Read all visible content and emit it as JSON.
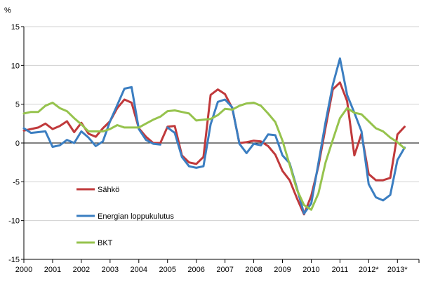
{
  "chart_data": {
    "type": "line",
    "ylabel": "%",
    "ylim": [
      -15,
      15
    ],
    "yticks": [
      -15,
      -10,
      -5,
      0,
      5,
      10,
      15
    ],
    "xlim": [
      2000,
      2013.75
    ],
    "xticks": [
      {
        "x": 2000,
        "label": "2000"
      },
      {
        "x": 2001,
        "label": "2001"
      },
      {
        "x": 2002,
        "label": "2002"
      },
      {
        "x": 2003,
        "label": "2003"
      },
      {
        "x": 2004,
        "label": "2004"
      },
      {
        "x": 2005,
        "label": "2005"
      },
      {
        "x": 2006,
        "label": "2006"
      },
      {
        "x": 2007,
        "label": "2007"
      },
      {
        "x": 2008,
        "label": "2008"
      },
      {
        "x": 2009,
        "label": "2009"
      },
      {
        "x": 2010,
        "label": "2010"
      },
      {
        "x": 2011,
        "label": "2011"
      },
      {
        "x": 2012,
        "label": "2012*"
      },
      {
        "x": 2013,
        "label": "2013*"
      }
    ],
    "grid": "horizontal",
    "legend_position": "inside-bottom-left",
    "series": [
      {
        "name": "Sähkö",
        "color": "#c0393b",
        "values": [
          [
            2000.0,
            1.6
          ],
          [
            2000.25,
            1.8
          ],
          [
            2000.5,
            2.0
          ],
          [
            2000.75,
            2.5
          ],
          [
            2001.0,
            1.8
          ],
          [
            2001.25,
            2.2
          ],
          [
            2001.5,
            2.8
          ],
          [
            2001.75,
            1.4
          ],
          [
            2002.0,
            2.6
          ],
          [
            2002.25,
            1.2
          ],
          [
            2002.5,
            0.8
          ],
          [
            2002.75,
            1.9
          ],
          [
            2003.0,
            2.8
          ],
          [
            2003.25,
            4.5
          ],
          [
            2003.5,
            5.6
          ],
          [
            2003.75,
            5.2
          ],
          [
            2004.0,
            1.9
          ],
          [
            2004.25,
            0.8
          ],
          [
            2004.5,
            0.0
          ],
          [
            2004.75,
            0.0
          ],
          [
            2005.0,
            2.1
          ],
          [
            2005.25,
            2.2
          ],
          [
            2005.5,
            -1.6
          ],
          [
            2005.75,
            -2.5
          ],
          [
            2006.0,
            -2.7
          ],
          [
            2006.25,
            -1.8
          ],
          [
            2006.5,
            6.2
          ],
          [
            2006.75,
            6.9
          ],
          [
            2007.0,
            6.3
          ],
          [
            2007.25,
            4.5
          ],
          [
            2007.5,
            0.0
          ],
          [
            2007.75,
            0.1
          ],
          [
            2008.0,
            0.3
          ],
          [
            2008.25,
            0.2
          ],
          [
            2008.5,
            -0.4
          ],
          [
            2008.75,
            -1.5
          ],
          [
            2009.0,
            -3.6
          ],
          [
            2009.25,
            -4.8
          ],
          [
            2009.5,
            -7.1
          ],
          [
            2009.75,
            -9.2
          ],
          [
            2010.0,
            -6.8
          ],
          [
            2010.25,
            -3.0
          ],
          [
            2010.5,
            2.0
          ],
          [
            2010.75,
            6.9
          ],
          [
            2011.0,
            7.8
          ],
          [
            2011.25,
            5.4
          ],
          [
            2011.5,
            -1.6
          ],
          [
            2011.75,
            1.2
          ],
          [
            2012.0,
            -4.0
          ],
          [
            2012.25,
            -4.8
          ],
          [
            2012.5,
            -4.8
          ],
          [
            2012.75,
            -4.5
          ],
          [
            2013.0,
            1.1
          ],
          [
            2013.25,
            2.1
          ]
        ]
      },
      {
        "name": "Energian loppukulutus",
        "color": "#3b7ec1",
        "values": [
          [
            2000.0,
            1.9
          ],
          [
            2000.25,
            1.3
          ],
          [
            2000.5,
            1.4
          ],
          [
            2000.75,
            1.5
          ],
          [
            2001.0,
            -0.5
          ],
          [
            2001.25,
            -0.3
          ],
          [
            2001.5,
            0.4
          ],
          [
            2001.75,
            0.0
          ],
          [
            2002.0,
            1.5
          ],
          [
            2002.25,
            0.7
          ],
          [
            2002.5,
            -0.4
          ],
          [
            2002.75,
            0.2
          ],
          [
            2003.0,
            2.8
          ],
          [
            2003.25,
            4.9
          ],
          [
            2003.5,
            7.0
          ],
          [
            2003.75,
            7.2
          ],
          [
            2004.0,
            1.8
          ],
          [
            2004.25,
            0.4
          ],
          [
            2004.5,
            -0.1
          ],
          [
            2004.75,
            -0.2
          ],
          [
            null,
            null
          ],
          [
            2005.0,
            2.0
          ],
          [
            2005.25,
            1.3
          ],
          [
            2005.5,
            -1.8
          ],
          [
            2005.75,
            -3.0
          ],
          [
            2006.0,
            -3.2
          ],
          [
            2006.25,
            -3.0
          ],
          [
            2006.5,
            2.4
          ],
          [
            2006.75,
            5.3
          ],
          [
            2007.0,
            5.6
          ],
          [
            2007.25,
            4.6
          ],
          [
            2007.5,
            -0.1
          ],
          [
            2007.75,
            -1.3
          ],
          [
            2008.0,
            -0.1
          ],
          [
            2008.25,
            -0.3
          ],
          [
            2008.5,
            1.1
          ],
          [
            2008.75,
            1.0
          ],
          [
            2009.0,
            -1.6
          ],
          [
            2009.25,
            -2.6
          ],
          [
            2009.5,
            -5.8
          ],
          [
            2009.75,
            -9.1
          ],
          [
            2010.0,
            -7.8
          ],
          [
            2010.25,
            -2.6
          ],
          [
            2010.5,
            2.7
          ],
          [
            2010.75,
            7.5
          ],
          [
            2011.0,
            10.9
          ],
          [
            2011.25,
            6.2
          ],
          [
            2011.5,
            3.9
          ],
          [
            2011.75,
            1.5
          ],
          [
            2012.0,
            -5.3
          ],
          [
            2012.25,
            -7.0
          ],
          [
            2012.5,
            -7.4
          ],
          [
            2012.75,
            -6.7
          ],
          [
            2013.0,
            -2.2
          ],
          [
            2013.25,
            -0.6
          ]
        ]
      },
      {
        "name": "BKT",
        "color": "#96c34d",
        "values": [
          [
            2000.0,
            3.8
          ],
          [
            2000.25,
            4.0
          ],
          [
            2000.5,
            4.0
          ],
          [
            2000.75,
            4.8
          ],
          [
            2001.0,
            5.2
          ],
          [
            2001.25,
            4.5
          ],
          [
            2001.5,
            4.1
          ],
          [
            2001.75,
            3.2
          ],
          [
            2002.0,
            2.4
          ],
          [
            2002.25,
            1.5
          ],
          [
            2002.5,
            1.5
          ],
          [
            2002.75,
            1.5
          ],
          [
            2003.0,
            1.8
          ],
          [
            2003.25,
            2.3
          ],
          [
            2003.5,
            2.0
          ],
          [
            2003.75,
            2.0
          ],
          [
            2004.0,
            2.0
          ],
          [
            2004.25,
            2.5
          ],
          [
            2004.5,
            3.0
          ],
          [
            2004.75,
            3.4
          ],
          [
            2005.0,
            4.1
          ],
          [
            2005.25,
            4.2
          ],
          [
            2005.5,
            4.0
          ],
          [
            2005.75,
            3.8
          ],
          [
            2006.0,
            2.9
          ],
          [
            2006.25,
            3.0
          ],
          [
            2006.5,
            3.1
          ],
          [
            2006.75,
            3.6
          ],
          [
            2007.0,
            4.4
          ],
          [
            2007.25,
            4.3
          ],
          [
            2007.5,
            4.8
          ],
          [
            2007.75,
            5.1
          ],
          [
            2008.0,
            5.2
          ],
          [
            2008.25,
            4.8
          ],
          [
            2008.5,
            3.8
          ],
          [
            2008.75,
            2.7
          ],
          [
            2009.0,
            0.3
          ],
          [
            2009.25,
            -2.8
          ],
          [
            2009.5,
            -6.0
          ],
          [
            2009.75,
            -8.0
          ],
          [
            2010.0,
            -8.6
          ],
          [
            2010.25,
            -6.5
          ],
          [
            2010.5,
            -2.5
          ],
          [
            2010.75,
            0.4
          ],
          [
            2011.0,
            3.2
          ],
          [
            2011.25,
            4.5
          ],
          [
            2011.5,
            3.9
          ],
          [
            2011.75,
            3.7
          ],
          [
            2012.0,
            2.8
          ],
          [
            2012.25,
            1.9
          ],
          [
            2012.5,
            1.5
          ],
          [
            2012.75,
            0.7
          ],
          [
            2013.0,
            0.1
          ],
          [
            2013.25,
            -0.7
          ]
        ]
      }
    ]
  }
}
